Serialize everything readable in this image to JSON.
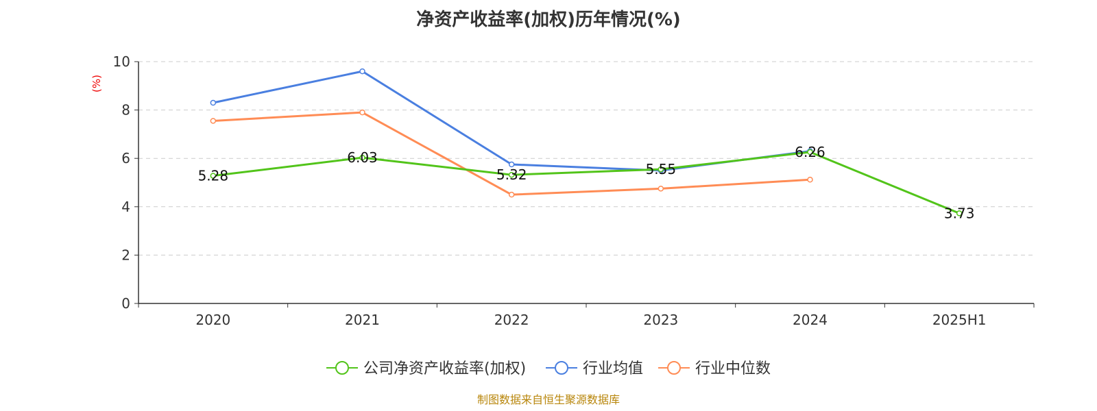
{
  "chart_data": {
    "type": "line",
    "title": "净资产收益率(加权)历年情况(%)",
    "ylabel": "(%)",
    "xlabel": "",
    "categories": [
      "2020",
      "2021",
      "2022",
      "2023",
      "2024",
      "2025H1"
    ],
    "ylim": [
      0,
      10
    ],
    "yticks": [
      0,
      2,
      4,
      6,
      8,
      10
    ],
    "grid": true,
    "legend_position": "bottom",
    "series": [
      {
        "name": "公司净资产收益率(加权)",
        "color": "#52c41a",
        "values": [
          5.28,
          6.03,
          5.32,
          5.55,
          6.26,
          3.73
        ],
        "labels": [
          "5.28",
          "6.03",
          "5.32",
          "5.55",
          "6.26",
          "3.73"
        ]
      },
      {
        "name": "行业均值",
        "color": "#4a7fe0",
        "values": [
          8.3,
          9.6,
          5.75,
          5.5,
          6.3,
          null
        ]
      },
      {
        "name": "行业中位数",
        "color": "#ff8c55",
        "values": [
          7.55,
          7.9,
          4.5,
          4.75,
          5.12,
          null
        ]
      }
    ],
    "source": "制图数据来自恒生聚源数据库"
  }
}
